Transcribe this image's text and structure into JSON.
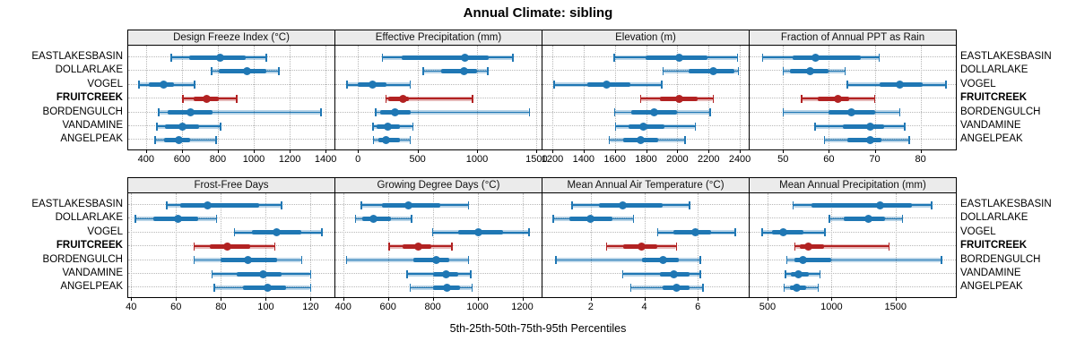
{
  "title": "Annual Climate: sibling",
  "footer": "5th-25th-50th-75th-95th Percentiles",
  "colors": {
    "series": "#1f77b4",
    "series_light": "rgba(31,119,180,0.32)",
    "highlight": "#b22222",
    "highlight_light": "rgba(178,34,34,0.32)",
    "header_bg": "#ebebeb",
    "grid": "#b8b8b8"
  },
  "sites": [
    {
      "label": "EASTLAKESBASIN",
      "highlight": false
    },
    {
      "label": "DOLLARLAKE",
      "highlight": false
    },
    {
      "label": "VOGEL",
      "highlight": false
    },
    {
      "label": "FRUITCREEK",
      "highlight": true
    },
    {
      "label": "BORDENGULCH",
      "highlight": false
    },
    {
      "label": "VANDAMINE",
      "highlight": false
    },
    {
      "label": "ANGELPEAK",
      "highlight": false
    }
  ],
  "chart_data": {
    "type": "percentile-dotplot",
    "title": "Annual Climate: sibling",
    "xlabel": "5th-25th-50th-75th-95th Percentiles",
    "percentile_labels": [
      "5th",
      "25th",
      "50th",
      "75th",
      "95th"
    ],
    "legend_position": "none",
    "grid": "dotted",
    "panels": [
      {
        "title": "Design Freeze Index (°C)",
        "row": 0,
        "col": 0,
        "xlim": [
          301,
          1449
        ],
        "ticks": [
          400,
          600,
          800,
          1000,
          1200,
          1400
        ],
        "tick_labels": [
          "400",
          "600",
          "800",
          "1000",
          "1200",
          "1400"
        ],
        "values": [
          [
            540,
            640,
            815,
            955,
            1070
          ],
          [
            765,
            805,
            960,
            1070,
            1140
          ],
          [
            360,
            415,
            500,
            555,
            670
          ],
          [
            605,
            665,
            740,
            805,
            905
          ],
          [
            470,
            520,
            650,
            770,
            1375
          ],
          [
            460,
            505,
            605,
            695,
            815
          ],
          [
            450,
            500,
            585,
            645,
            790
          ]
        ]
      },
      {
        "title": "Effective Precipitation (mm)",
        "row": 0,
        "col": 1,
        "xlim": [
          -190,
          1542
        ],
        "ticks": [
          0,
          500,
          1000,
          1500
        ],
        "tick_labels": [
          "0",
          "500",
          "1000",
          "1500"
        ],
        "values": [
          [
            205,
            370,
            900,
            1100,
            1300
          ],
          [
            550,
            700,
            890,
            1000,
            1090
          ],
          [
            -90,
            0,
            120,
            240,
            440
          ],
          [
            235,
            255,
            375,
            430,
            960
          ],
          [
            150,
            190,
            310,
            440,
            1440
          ],
          [
            125,
            160,
            250,
            350,
            460
          ],
          [
            130,
            175,
            235,
            350,
            440
          ]
        ]
      },
      {
        "title": "Elevation (m)",
        "row": 0,
        "col": 2,
        "xlim": [
          1137,
          2457
        ],
        "ticks": [
          1200,
          1400,
          1600,
          1800,
          2000,
          2200,
          2400
        ],
        "tick_labels": [
          "1200",
          "1400",
          "1600",
          "1800",
          "2000",
          "2200",
          "2400"
        ],
        "values": [
          [
            1595,
            1795,
            2015,
            2195,
            2385
          ],
          [
            1910,
            2070,
            2230,
            2365,
            2390
          ],
          [
            1210,
            1425,
            1545,
            1700,
            1900
          ],
          [
            1765,
            1890,
            2010,
            2130,
            2230
          ],
          [
            1600,
            1705,
            1850,
            2000,
            2210
          ],
          [
            1605,
            1690,
            1780,
            1915,
            2115
          ],
          [
            1565,
            1655,
            1765,
            1875,
            2050
          ]
        ]
      },
      {
        "title": "Fraction of Annual PPT as Rain",
        "row": 0,
        "col": 3,
        "xlim": [
          42.7,
          87.7
        ],
        "ticks": [
          50,
          60,
          70,
          80
        ],
        "tick_labels": [
          "50",
          "60",
          "70",
          "80"
        ],
        "values": [
          [
            45.5,
            52,
            57,
            67,
            71
          ],
          [
            50,
            51.5,
            56,
            60,
            63.5
          ],
          [
            64,
            71,
            75.5,
            80.5,
            85.5
          ],
          [
            54,
            57.5,
            62,
            64.5,
            70
          ],
          [
            50,
            60,
            65,
            70,
            75.5
          ],
          [
            57,
            63,
            69,
            72,
            76.5
          ],
          [
            59,
            64,
            69,
            71.5,
            77.5
          ]
        ]
      },
      {
        "title": "Frost-Free Days",
        "row": 1,
        "col": 0,
        "xlim": [
          38.7,
          130.6
        ],
        "ticks": [
          40,
          60,
          80,
          100,
          120
        ],
        "tick_labels": [
          "40",
          "60",
          "80",
          "100",
          "120"
        ],
        "values": [
          [
            56,
            62,
            74,
            97,
            107
          ],
          [
            42,
            50,
            61,
            70,
            78
          ],
          [
            86,
            94,
            105,
            116,
            125
          ],
          [
            68,
            75,
            83,
            93,
            104
          ],
          [
            68,
            80,
            92,
            105,
            116
          ],
          [
            76,
            87,
            99,
            107,
            120
          ],
          [
            77,
            90,
            101,
            109,
            120
          ]
        ]
      },
      {
        "title": "Growing Degree Days (°C)",
        "row": 1,
        "col": 1,
        "xlim": [
          365,
          1286
        ],
        "ticks": [
          400,
          600,
          800,
          1000,
          1200
        ],
        "tick_labels": [
          "400",
          "600",
          "800",
          "1000",
          "1200"
        ],
        "values": [
          [
            480,
            575,
            690,
            835,
            960
          ],
          [
            455,
            485,
            535,
            615,
            705
          ],
          [
            800,
            915,
            1005,
            1115,
            1230
          ],
          [
            605,
            665,
            735,
            795,
            885
          ],
          [
            415,
            715,
            815,
            875,
            960
          ],
          [
            685,
            800,
            860,
            915,
            970
          ],
          [
            700,
            800,
            865,
            920,
            975
          ]
        ]
      },
      {
        "title": "Mean Annual Air Temperature (°C)",
        "row": 1,
        "col": 2,
        "xlim": [
          0.2,
          7.9
        ],
        "ticks": [
          2,
          4,
          6
        ],
        "tick_labels": [
          "2",
          "4",
          "6"
        ],
        "values": [
          [
            1.3,
            2.3,
            3.2,
            4.7,
            5.7
          ],
          [
            0.6,
            1.2,
            2.0,
            2.8,
            3.6
          ],
          [
            4.5,
            5.1,
            5.9,
            6.5,
            7.4
          ],
          [
            2.6,
            3.2,
            3.9,
            4.5,
            5.2
          ],
          [
            0.7,
            3.9,
            4.7,
            5.3,
            6.1
          ],
          [
            3.2,
            4.6,
            5.1,
            5.7,
            6.1
          ],
          [
            3.5,
            4.7,
            5.2,
            5.7,
            6.2
          ]
        ]
      },
      {
        "title": "Mean Annual Precipitation (mm)",
        "row": 1,
        "col": 3,
        "xlim": [
          360,
          1971
        ],
        "ticks": [
          500,
          1000,
          1500
        ],
        "tick_labels": [
          "500",
          "1000",
          "1500"
        ],
        "values": [
          [
            700,
            840,
            1380,
            1630,
            1780
          ],
          [
            985,
            1095,
            1285,
            1420,
            1555
          ],
          [
            460,
            535,
            620,
            780,
            950
          ],
          [
            715,
            755,
            820,
            940,
            1450
          ],
          [
            650,
            710,
            780,
            1000,
            1860
          ],
          [
            640,
            685,
            745,
            825,
            910
          ],
          [
            630,
            675,
            725,
            800,
            895
          ]
        ]
      }
    ]
  }
}
